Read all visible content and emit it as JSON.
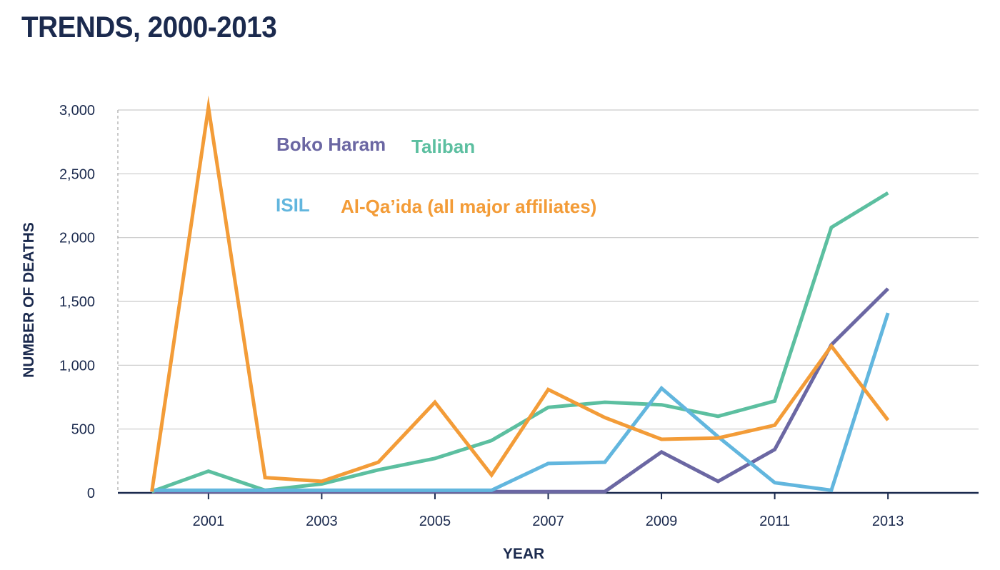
{
  "chart_data": {
    "type": "line",
    "title": "TRENDS, 2000-2013",
    "xlabel": "YEAR",
    "ylabel": "NUMBER OF DEATHS",
    "x": [
      2000,
      2001,
      2002,
      2003,
      2004,
      2005,
      2006,
      2007,
      2008,
      2009,
      2010,
      2011,
      2012,
      2013
    ],
    "xticks": [
      2001,
      2003,
      2005,
      2007,
      2009,
      2011,
      2013
    ],
    "xtick_labels": [
      "2001",
      "2003",
      "2005",
      "2007",
      "2009",
      "2011",
      "2013"
    ],
    "xlim": [
      1999.4,
      2014.6
    ],
    "ylim": [
      0,
      3000
    ],
    "yticks": [
      0,
      500,
      1000,
      1500,
      2000,
      2500,
      3000
    ],
    "ytick_labels": [
      "0",
      "500",
      "1,000",
      "1,500",
      "2,000",
      "2,500",
      "3,000"
    ],
    "grid": "horizontal",
    "legend": "inside-top, two rows",
    "series": [
      {
        "name": "Boko Haram",
        "color": "#6b67a3",
        "legend_row": 1,
        "values": [
          10,
          10,
          10,
          10,
          10,
          10,
          10,
          10,
          10,
          320,
          90,
          340,
          1160,
          1600
        ]
      },
      {
        "name": "Taliban",
        "color": "#5cbfa0",
        "legend_row": 1,
        "values": [
          10,
          170,
          20,
          70,
          180,
          270,
          410,
          670,
          710,
          690,
          600,
          720,
          2080,
          2350
        ]
      },
      {
        "name": "ISIL",
        "color": "#62b6de",
        "legend_row": 2,
        "values": [
          20,
          20,
          20,
          20,
          20,
          20,
          20,
          230,
          240,
          820,
          440,
          80,
          20,
          1410
        ]
      },
      {
        "name": "Al-Qa’ida (all major affiliates)",
        "color": "#f39c38",
        "legend_row": 2,
        "values": [
          10,
          3020,
          120,
          90,
          240,
          710,
          140,
          810,
          590,
          420,
          430,
          530,
          1150,
          570
        ]
      }
    ]
  }
}
